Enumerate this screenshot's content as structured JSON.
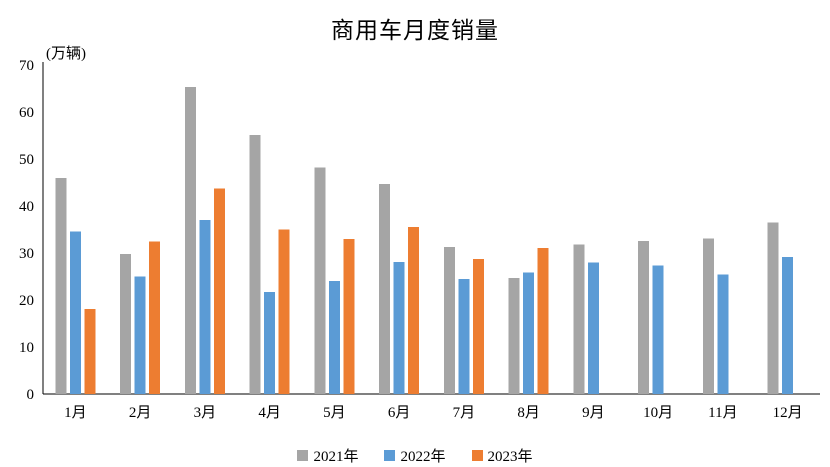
{
  "chart_data": {
    "type": "bar",
    "title": "商用车月度销量",
    "unit_label": "(万辆)",
    "categories": [
      "1月",
      "2月",
      "3月",
      "4月",
      "5月",
      "6月",
      "7月",
      "8月",
      "9月",
      "10月",
      "11月",
      "12月"
    ],
    "series": [
      {
        "name": "2021年",
        "color": "#A5A5A5",
        "values": [
          46.0,
          29.8,
          65.3,
          55.1,
          48.2,
          44.7,
          31.3,
          24.7,
          31.8,
          32.6,
          33.1,
          36.5
        ]
      },
      {
        "name": "2022年",
        "color": "#5B9BD5",
        "values": [
          34.6,
          25.0,
          37.0,
          21.7,
          24.0,
          28.1,
          24.5,
          25.8,
          28.0,
          27.3,
          25.4,
          29.2
        ]
      },
      {
        "name": "2023年",
        "color": "#ED7D31",
        "values": [
          18.1,
          32.4,
          43.7,
          35.0,
          33.0,
          35.5,
          28.7,
          31.1,
          null,
          null,
          null,
          null
        ]
      }
    ],
    "ylim": [
      0,
      70
    ],
    "ytick_step": 10,
    "grid": false,
    "legend_position": "bottom",
    "axis_color": "#000000"
  }
}
